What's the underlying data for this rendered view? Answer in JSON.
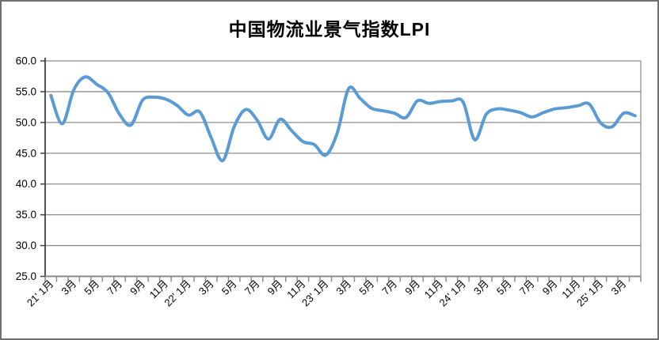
{
  "window": {
    "background": "#ffffff",
    "border_color": "#707070"
  },
  "chart": {
    "title": "中国物流业景气指数LPI",
    "line_color": "#5B9BD5",
    "gridline_color": "#8e8e8e",
    "x_axis_color": "#8a8a8a",
    "y_axis_color": "#404040",
    "tick_color": "#8a8a8a",
    "label_color": "#000000"
  },
  "chart_data": {
    "type": "line",
    "title": "中国物流业景气指数LPI",
    "smoothed": true,
    "grid": true,
    "legend": "none",
    "ylim": [
      25.0,
      60.0
    ],
    "y_step": 5.0,
    "y_tick_labels": [
      "60.0",
      "55.0",
      "50.0",
      "45.0",
      "40.0",
      "35.0",
      "30.0",
      "25.0"
    ],
    "x_tick_labels": [
      "21' 1月",
      "3月",
      "5月",
      "7月",
      "9月",
      "11月",
      "22' 1月",
      "3月",
      "5月",
      "7月",
      "9月",
      "11月",
      "23' 1月",
      "3月",
      "5月",
      "7月",
      "9月",
      "11月",
      "24' 1月",
      "3月",
      "5月",
      "7月",
      "9月",
      "11月",
      "25' 1月",
      "3月"
    ],
    "months": [
      "2021-01",
      "2021-02",
      "2021-03",
      "2021-04",
      "2021-05",
      "2021-06",
      "2021-07",
      "2021-08",
      "2021-09",
      "2021-10",
      "2021-11",
      "2021-12",
      "2022-01",
      "2022-02",
      "2022-03",
      "2022-04",
      "2022-05",
      "2022-06",
      "2022-07",
      "2022-08",
      "2022-09",
      "2022-10",
      "2022-11",
      "2022-12",
      "2023-01",
      "2023-02",
      "2023-03",
      "2023-04",
      "2023-05",
      "2023-06",
      "2023-07",
      "2023-08",
      "2023-09",
      "2023-10",
      "2023-11",
      "2023-12",
      "2024-01",
      "2024-02",
      "2024-03",
      "2024-04",
      "2024-05",
      "2024-06",
      "2024-07",
      "2024-08",
      "2024-09",
      "2024-10",
      "2024-11",
      "2024-12",
      "2025-01",
      "2025-02",
      "2025-03",
      "2025-04"
    ],
    "values": [
      54.4,
      49.8,
      55.3,
      57.4,
      56.2,
      54.8,
      51.3,
      49.6,
      53.6,
      54.1,
      53.8,
      52.8,
      51.2,
      51.7,
      47.5,
      43.8,
      49.3,
      52.1,
      50.4,
      47.3,
      50.5,
      48.7,
      46.9,
      46.4,
      44.7,
      48.3,
      55.5,
      53.9,
      52.3,
      51.9,
      51.5,
      50.8,
      53.5,
      53.1,
      53.4,
      53.5,
      53.3,
      47.2,
      51.3,
      52.2,
      52.0,
      51.6,
      50.9,
      51.6,
      52.2,
      52.4,
      52.7,
      53.0,
      49.9,
      49.3,
      51.5,
      51.1
    ]
  }
}
